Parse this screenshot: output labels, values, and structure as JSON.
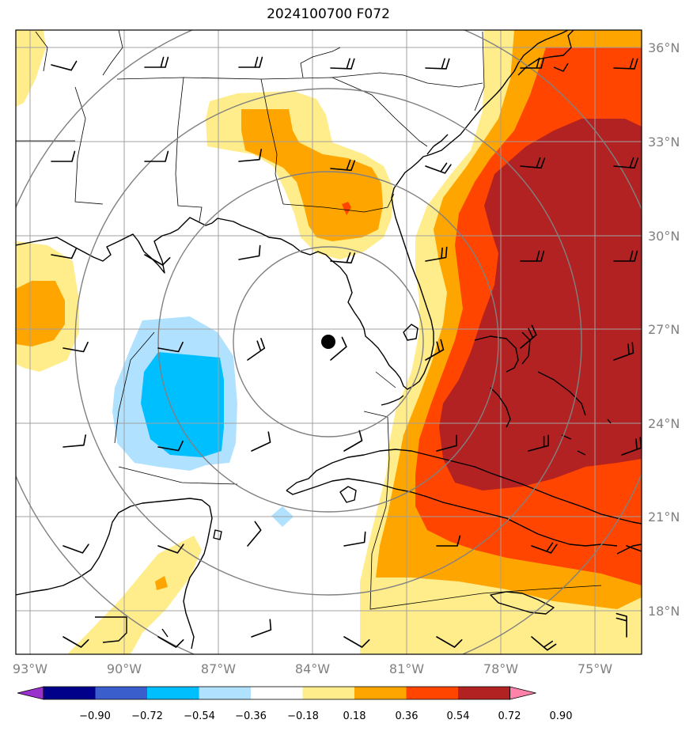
{
  "title": "2024100700 F072",
  "lon_ticks": [
    "93°W",
    "90°W",
    "87°W",
    "84°W",
    "81°W",
    "78°W",
    "75°W"
  ],
  "lat_ticks": [
    "36°N",
    "33°N",
    "30°N",
    "27°N",
    "24°N",
    "21°N",
    "18°N"
  ],
  "colorbar": {
    "labels": [
      "−0.90",
      "−0.72",
      "−0.54",
      "−0.36",
      "−0.18",
      "0.18",
      "0.36",
      "0.54",
      "0.72",
      "0.90"
    ],
    "colors": [
      "#9932cc",
      "#00008b",
      "#3a5fcd",
      "#00bfff",
      "#b0e2ff",
      "#ffffff",
      "#ffec8b",
      "#ffa500",
      "#ff4500",
      "#b22222",
      "#ff82ab"
    ]
  },
  "storm_center_marker": "filled-black-dot",
  "colors": {
    "axis": "#000000",
    "grid": "#a0a0a0",
    "range_rings": "#808080",
    "coast": "#000000"
  }
}
